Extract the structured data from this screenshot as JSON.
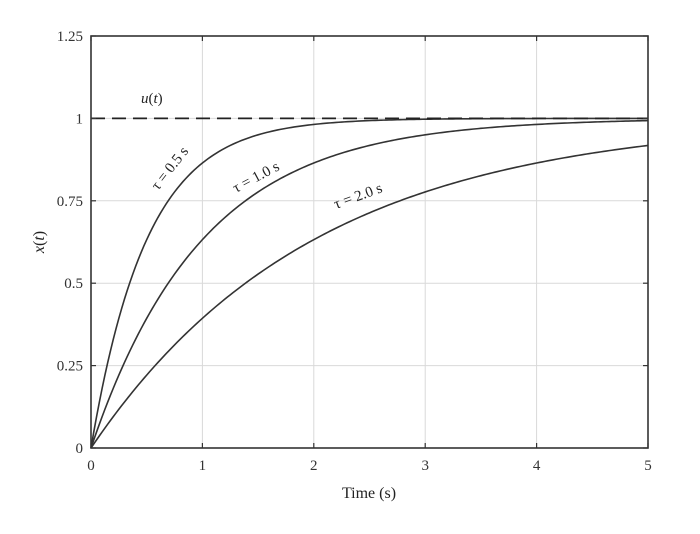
{
  "chart_data": {
    "type": "line",
    "title": "",
    "xlabel": "Time (s)",
    "ylabel": "x(t)",
    "xlim": [
      0,
      5
    ],
    "ylim": [
      0,
      1.25
    ],
    "grid": true,
    "legend": null,
    "x_ticks": [
      "0",
      "1",
      "2",
      "3",
      "4",
      "5"
    ],
    "y_ticks": [
      "0",
      "0.25",
      "0.5",
      "0.75",
      "1",
      "1.25"
    ],
    "x": [
      0,
      0.25,
      0.5,
      0.75,
      1.0,
      1.5,
      2.0,
      2.5,
      3.0,
      3.5,
      4.0,
      4.5,
      5.0
    ],
    "series": [
      {
        "name": "τ = 0.5 s",
        "tau": 0.5,
        "style": "solid",
        "values": [
          0,
          0.393,
          0.632,
          0.777,
          0.865,
          0.95,
          0.982,
          0.993,
          0.998,
          0.999,
          1.0,
          1.0,
          1.0
        ]
      },
      {
        "name": "τ = 1.0 s",
        "tau": 1.0,
        "style": "solid",
        "values": [
          0,
          0.221,
          0.393,
          0.528,
          0.632,
          0.777,
          0.865,
          0.918,
          0.95,
          0.97,
          0.982,
          0.989,
          0.993
        ]
      },
      {
        "name": "τ = 2.0 s",
        "tau": 2.0,
        "style": "solid",
        "values": [
          0,
          0.118,
          0.221,
          0.313,
          0.393,
          0.528,
          0.632,
          0.713,
          0.777,
          0.826,
          0.865,
          0.895,
          0.918
        ]
      },
      {
        "name": "u(t)",
        "style": "dashed",
        "values": [
          1,
          1,
          1,
          1,
          1,
          1,
          1,
          1,
          1,
          1,
          1,
          1,
          1
        ]
      }
    ],
    "annotations": [
      {
        "text": "u(t)",
        "x": 0.55,
        "y": 1.06
      },
      {
        "text": "τ = 0.5 s",
        "x": 0.75,
        "y": 0.86,
        "rotation": -52
      },
      {
        "text": "τ = 1.0 s",
        "x": 1.6,
        "y": 0.82,
        "rotation": -28
      },
      {
        "text": "τ = 2.0 s",
        "x": 2.7,
        "y": 0.74,
        "rotation": -20
      }
    ]
  },
  "labels": {
    "xlabel": "Time (s)",
    "ylabel_var": "x",
    "ylabel_arg": "t",
    "u_var": "u",
    "u_arg": "t",
    "tau05": "τ = 0.5 s",
    "tau10": "τ = 1.0 s",
    "tau20": "τ = 2.0 s"
  }
}
